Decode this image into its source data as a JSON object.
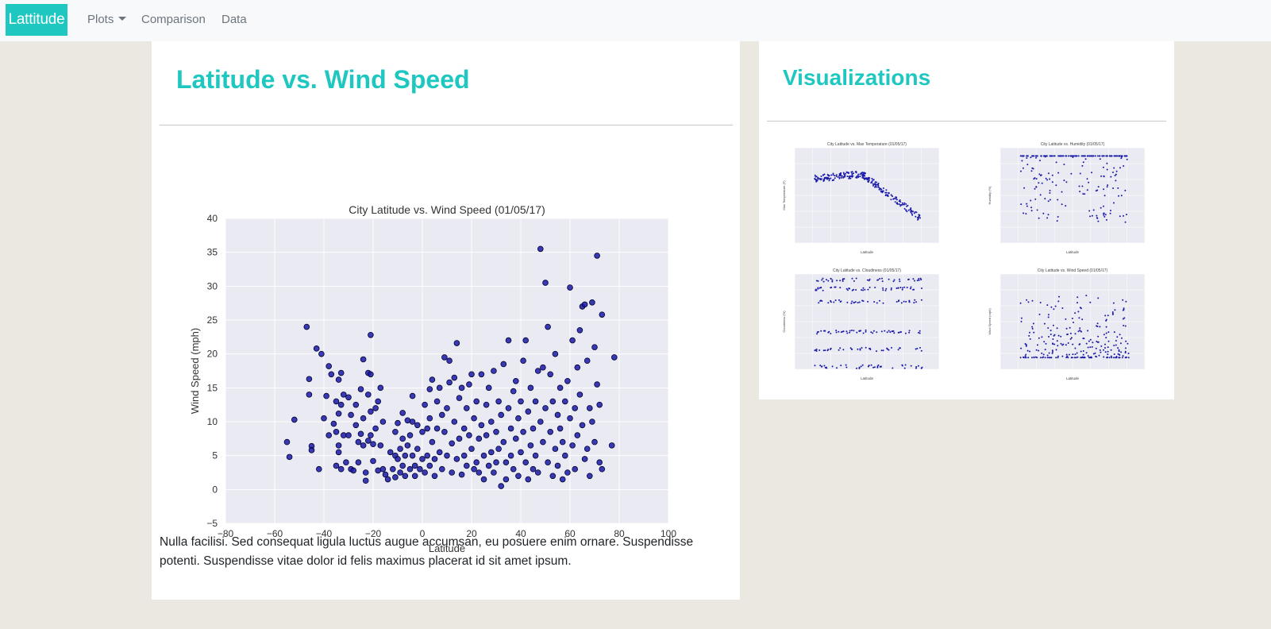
{
  "nav": {
    "brand": "Lattitude",
    "items": [
      "Plots",
      "Comparison",
      "Data"
    ]
  },
  "main": {
    "title": "Latitude vs. Wind Speed",
    "description": "Nulla facilisi. Sed consequat ligula luctus augue accumsan, eu posuere enim ornare. Suspendisse potenti. Suspendisse vitae dolor id felis maximus placerat id sit amet ipsum."
  },
  "sidebar": {
    "title": "Visualizations",
    "thumbnails": [
      {
        "title": "City Latitude vs. Max Temperature (01/05/17)",
        "xlabel": "Latitude",
        "ylabel": "Max Temperature (F)"
      },
      {
        "title": "City Latitude vs. Humidity (01/05/17)",
        "xlabel": "Latitude",
        "ylabel": "Humidity (%)"
      },
      {
        "title": "City Latitude vs. Cloudiness (01/05/17)",
        "xlabel": "Latitude",
        "ylabel": "Cloudiness (%)"
      },
      {
        "title": "City Latitude vs. Wind Speed (01/05/17)",
        "xlabel": "Latitude",
        "ylabel": "Wind Speed (mph)"
      }
    ]
  },
  "colors": {
    "accent": "#1fc7c1",
    "marker_fill": "#1a1aa8",
    "marker_edge": "#000033",
    "plot_bg": "#eaeaf2"
  },
  "chart_data": {
    "type": "scatter",
    "title": "City Latitude vs. Wind Speed (01/05/17)",
    "xlabel": "Latitude",
    "ylabel": "Wind Speed (mph)",
    "xlim": [
      -80,
      100
    ],
    "ylim": [
      -5,
      40
    ],
    "xticks": [
      -80,
      -60,
      -40,
      -20,
      0,
      20,
      40,
      60,
      80,
      100
    ],
    "yticks": [
      -5,
      0,
      5,
      10,
      15,
      20,
      25,
      30,
      35,
      40
    ],
    "grid": true,
    "points": [
      [
        -55,
        7
      ],
      [
        -54,
        4.8
      ],
      [
        -52,
        10.3
      ],
      [
        -47,
        24
      ],
      [
        -46,
        14
      ],
      [
        -46,
        16.3
      ],
      [
        -45,
        6.4
      ],
      [
        -45,
        5.8
      ],
      [
        -43,
        20.8
      ],
      [
        -42,
        3
      ],
      [
        -41,
        20
      ],
      [
        -40,
        10.5
      ],
      [
        -39,
        13.8
      ],
      [
        -38,
        8
      ],
      [
        -38,
        18.2
      ],
      [
        -37,
        17
      ],
      [
        -36,
        9.7
      ],
      [
        -35,
        13
      ],
      [
        -35,
        8.5
      ],
      [
        -35,
        3.5
      ],
      [
        -34,
        16.2
      ],
      [
        -34,
        11.2
      ],
      [
        -34,
        6.5
      ],
      [
        -34,
        5.5
      ],
      [
        -33,
        17.2
      ],
      [
        -33,
        12.5
      ],
      [
        -33,
        3
      ],
      [
        -32,
        14
      ],
      [
        -32,
        8
      ],
      [
        -31,
        4
      ],
      [
        -30,
        8
      ],
      [
        -30,
        13.6
      ],
      [
        -29,
        11
      ],
      [
        -29,
        3
      ],
      [
        -28,
        2.8
      ],
      [
        -27,
        12.5
      ],
      [
        -27,
        9.5
      ],
      [
        -26,
        7
      ],
      [
        -26,
        4
      ],
      [
        -25,
        14.8
      ],
      [
        -25,
        8.2
      ],
      [
        -24,
        19.2
      ],
      [
        -24,
        10.5
      ],
      [
        -24,
        6.5
      ],
      [
        -23,
        2.5
      ],
      [
        -23,
        1.3
      ],
      [
        -22,
        17.2
      ],
      [
        -22,
        14
      ],
      [
        -22,
        7.2
      ],
      [
        -21,
        22.8
      ],
      [
        -21,
        17
      ],
      [
        -21,
        11.5
      ],
      [
        -21,
        8
      ],
      [
        -20,
        6.7
      ],
      [
        -20,
        4.2
      ],
      [
        -19,
        12
      ],
      [
        -19,
        9
      ],
      [
        -18,
        13
      ],
      [
        -18,
        2.8
      ],
      [
        -17,
        15
      ],
      [
        -17,
        6.5
      ],
      [
        -16,
        10
      ],
      [
        -16,
        3
      ],
      [
        -15,
        2.2
      ],
      [
        -14,
        1.5
      ],
      [
        -13,
        5.5
      ],
      [
        -12,
        3
      ],
      [
        -11,
        8.5
      ],
      [
        -11,
        5
      ],
      [
        -11,
        1.8
      ],
      [
        -10,
        9.8
      ],
      [
        -10,
        4.5
      ],
      [
        -9,
        6
      ],
      [
        -9,
        2.5
      ],
      [
        -8,
        11.3
      ],
      [
        -8,
        7.5
      ],
      [
        -8,
        3.5
      ],
      [
        -7,
        5
      ],
      [
        -7,
        2
      ],
      [
        -6,
        10.2
      ],
      [
        -6,
        6.5
      ],
      [
        -5,
        8
      ],
      [
        -5,
        3
      ],
      [
        -4,
        13.8
      ],
      [
        -4,
        10
      ],
      [
        -4,
        5
      ],
      [
        -3,
        3.5
      ],
      [
        -3,
        2
      ],
      [
        -2,
        9.5
      ],
      [
        -2,
        6
      ],
      [
        -1,
        3
      ],
      [
        0,
        8.5
      ],
      [
        0,
        4.5
      ],
      [
        1,
        12.5
      ],
      [
        1,
        2.5
      ],
      [
        2,
        9
      ],
      [
        2,
        5
      ],
      [
        3,
        14.8
      ],
      [
        3,
        10.5
      ],
      [
        3,
        3.5
      ],
      [
        4,
        16.2
      ],
      [
        4,
        7
      ],
      [
        5,
        4.5
      ],
      [
        5,
        2
      ],
      [
        6,
        13
      ],
      [
        6,
        9
      ],
      [
        7,
        15
      ],
      [
        7,
        5.5
      ],
      [
        8,
        11
      ],
      [
        8,
        3
      ],
      [
        9,
        19.5
      ],
      [
        9,
        8.5
      ],
      [
        10,
        12
      ],
      [
        10,
        5
      ],
      [
        11,
        19
      ],
      [
        11,
        15.8
      ],
      [
        12,
        6.8
      ],
      [
        12,
        2.5
      ],
      [
        13,
        16.5
      ],
      [
        13,
        10
      ],
      [
        14,
        21.6
      ],
      [
        14,
        4.5
      ],
      [
        15,
        13.5
      ],
      [
        15,
        7.5
      ],
      [
        16,
        15
      ],
      [
        16,
        2.2
      ],
      [
        17,
        9
      ],
      [
        17,
        5
      ],
      [
        18,
        12
      ],
      [
        18,
        3.5
      ],
      [
        19,
        8
      ],
      [
        19,
        15.5
      ],
      [
        20,
        17
      ],
      [
        20,
        6
      ],
      [
        21,
        3
      ],
      [
        21,
        10.5
      ],
      [
        22,
        13
      ],
      [
        22,
        4
      ],
      [
        23,
        7.5
      ],
      [
        23,
        2.5
      ],
      [
        24,
        17
      ],
      [
        24,
        9.5
      ],
      [
        25,
        5
      ],
      [
        25,
        1.5
      ],
      [
        26,
        12.5
      ],
      [
        26,
        8
      ],
      [
        27,
        15
      ],
      [
        27,
        3.5
      ],
      [
        28,
        10
      ],
      [
        28,
        5.5
      ],
      [
        29,
        17.5
      ],
      [
        29,
        2.5
      ],
      [
        30,
        8.5
      ],
      [
        30,
        4
      ],
      [
        31,
        13
      ],
      [
        31,
        6
      ],
      [
        32,
        11
      ],
      [
        32,
        0.5
      ],
      [
        33,
        18.5
      ],
      [
        33,
        7
      ],
      [
        34,
        4
      ],
      [
        34,
        1.5
      ],
      [
        35,
        22
      ],
      [
        35,
        12
      ],
      [
        36,
        9
      ],
      [
        36,
        5
      ],
      [
        37,
        14.5
      ],
      [
        37,
        3
      ],
      [
        38,
        16
      ],
      [
        38,
        7.5
      ],
      [
        39,
        10.5
      ],
      [
        39,
        2
      ],
      [
        40,
        13
      ],
      [
        40,
        5.5
      ],
      [
        41,
        19
      ],
      [
        41,
        8.5
      ],
      [
        42,
        22
      ],
      [
        42,
        4
      ],
      [
        43,
        11.5
      ],
      [
        43,
        1.5
      ],
      [
        44,
        15
      ],
      [
        44,
        6.5
      ],
      [
        45,
        9
      ],
      [
        45,
        3
      ],
      [
        46,
        13
      ],
      [
        46,
        5
      ],
      [
        47,
        17.5
      ],
      [
        47,
        2.5
      ],
      [
        48,
        35.5
      ],
      [
        48,
        10
      ],
      [
        49,
        18
      ],
      [
        49,
        7
      ],
      [
        50,
        30.5
      ],
      [
        50,
        12
      ],
      [
        51,
        24
      ],
      [
        51,
        4
      ],
      [
        52,
        17
      ],
      [
        52,
        8.5
      ],
      [
        53,
        13
      ],
      [
        53,
        2
      ],
      [
        54,
        20
      ],
      [
        54,
        6
      ],
      [
        55,
        11
      ],
      [
        55,
        3.5
      ],
      [
        56,
        15
      ],
      [
        56,
        9
      ],
      [
        57,
        7
      ],
      [
        57,
        1.5
      ],
      [
        58,
        13
      ],
      [
        58,
        5
      ],
      [
        59,
        16
      ],
      [
        59,
        2.5
      ],
      [
        60,
        29.8
      ],
      [
        60,
        10.5
      ],
      [
        61,
        22
      ],
      [
        61,
        6.5
      ],
      [
        62,
        12
      ],
      [
        62,
        3
      ],
      [
        63,
        18
      ],
      [
        63,
        8
      ],
      [
        64,
        23.5
      ],
      [
        64,
        14
      ],
      [
        65,
        27
      ],
      [
        65,
        9.5
      ],
      [
        66,
        27.3
      ],
      [
        66,
        4.5
      ],
      [
        67,
        19
      ],
      [
        67,
        6
      ],
      [
        68,
        12
      ],
      [
        68,
        2
      ],
      [
        69,
        27.6
      ],
      [
        69,
        10
      ],
      [
        70,
        21
      ],
      [
        70,
        7
      ],
      [
        71,
        34.5
      ],
      [
        71,
        15.5
      ],
      [
        72,
        12.5
      ],
      [
        72,
        4
      ],
      [
        73,
        25.8
      ],
      [
        73,
        3
      ],
      [
        77,
        6.5
      ],
      [
        78,
        19.5
      ]
    ]
  }
}
